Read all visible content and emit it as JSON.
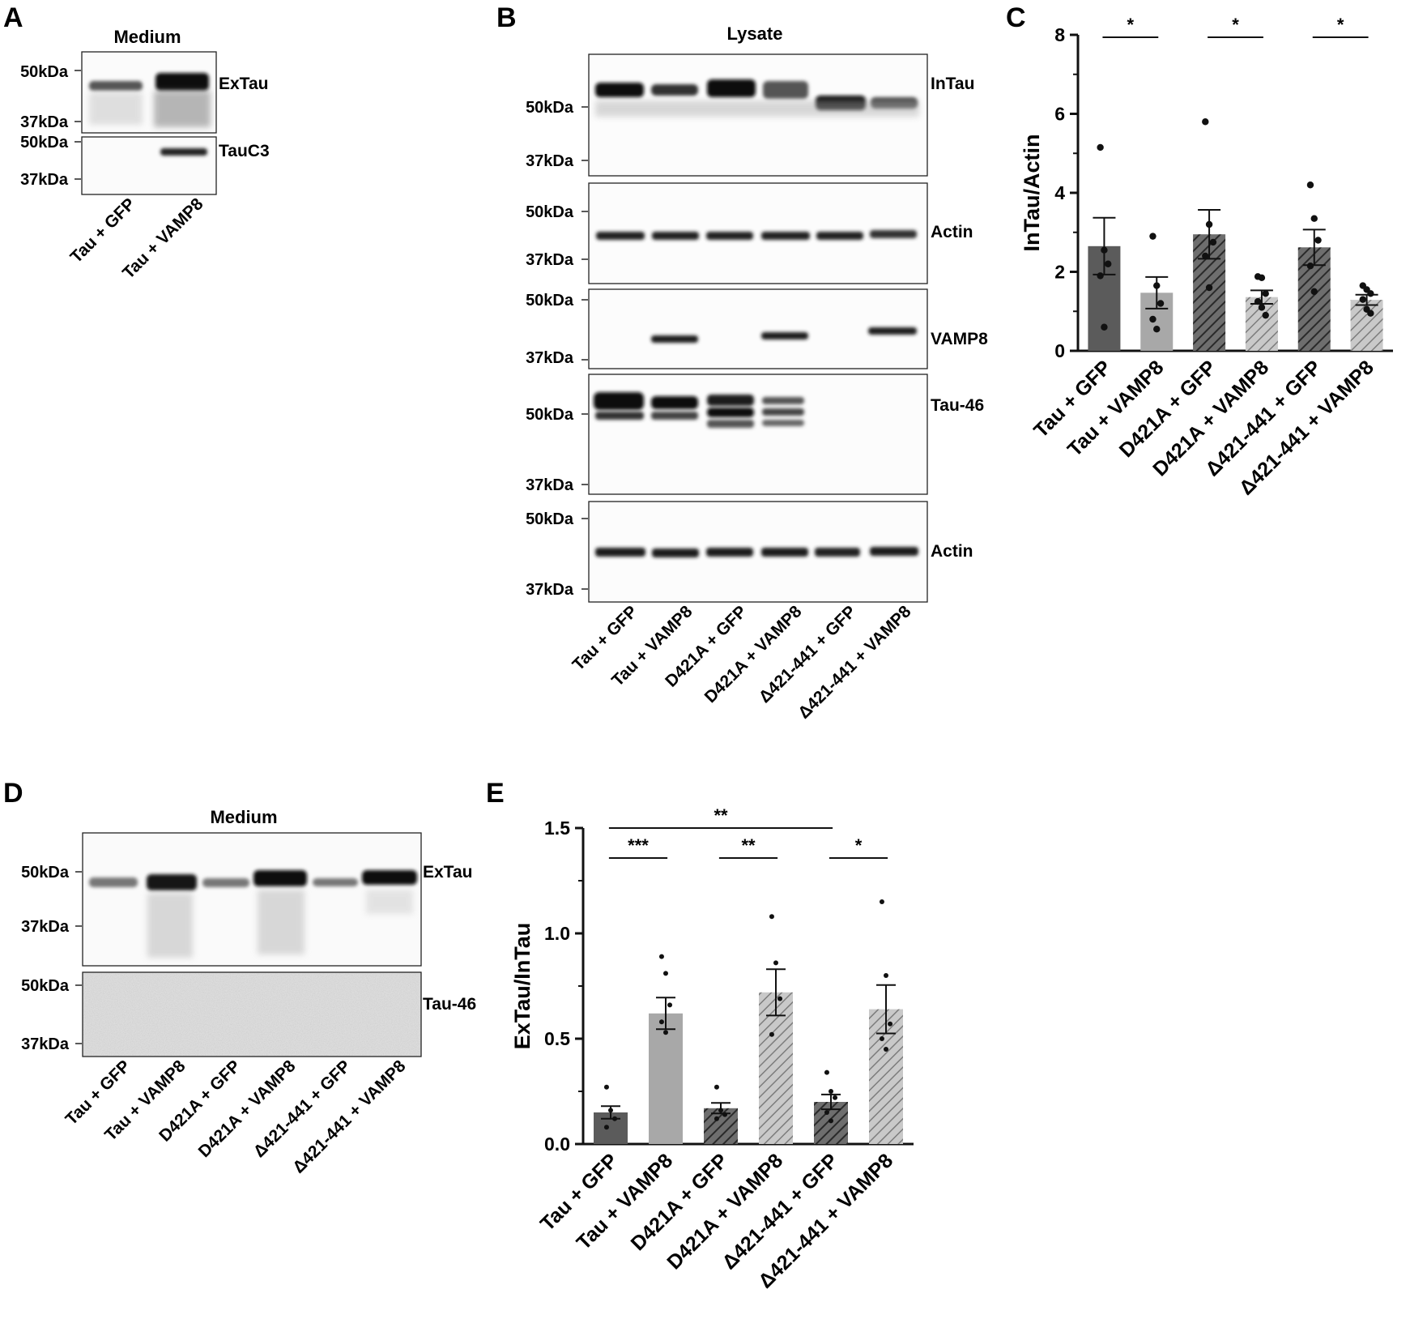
{
  "panels": {
    "A": {
      "label": "A",
      "title": "Medium",
      "blots": [
        {
          "name": "ExTau",
          "markers": [
            "50kDa",
            "37kDa"
          ]
        },
        {
          "name": "TauC3",
          "markers": [
            "50kDa",
            "37kDa"
          ]
        }
      ],
      "lanes": [
        "Tau + GFP",
        "Tau + VAMP8"
      ]
    },
    "B": {
      "label": "B",
      "title": "Lysate",
      "blots": [
        {
          "name": "InTau",
          "markers": [
            "50kDa",
            "37kDa"
          ]
        },
        {
          "name": "Actin",
          "markers": [
            "50kDa",
            "37kDa"
          ]
        },
        {
          "name": "VAMP8",
          "markers": [
            "50kDa",
            "37kDa"
          ]
        },
        {
          "name": "Tau-46",
          "markers": [
            "50kDa",
            "37kDa"
          ]
        },
        {
          "name": "Actin",
          "markers": [
            "50kDa",
            "37kDa"
          ]
        }
      ],
      "lanes": [
        "Tau + GFP",
        "Tau + VAMP8",
        "D421A + GFP",
        "D421A + VAMP8",
        "Δ421-441 + GFP",
        "Δ421-441 + VAMP8"
      ]
    },
    "D": {
      "label": "D",
      "title": "Medium",
      "blots": [
        {
          "name": "ExTau",
          "markers": [
            "50kDa",
            "37kDa"
          ]
        },
        {
          "name": "Tau-46",
          "markers": [
            "50kDa",
            "37kDa"
          ]
        }
      ],
      "lanes": [
        "Tau + GFP",
        "Tau + VAMP8",
        "D421A + GFP",
        "D421A + VAMP8",
        "Δ421-441 + GFP",
        "Δ421-441 + VAMP8"
      ]
    }
  },
  "chart_data": [
    {
      "panel": "C",
      "type": "bar",
      "ylabel": "InTau/Actin",
      "ylim": [
        0,
        8
      ],
      "yticks": [
        "0",
        "2",
        "4",
        "6",
        "8"
      ],
      "categories": [
        "Tau + GFP",
        "Tau + VAMP8",
        "D421A + GFP",
        "D421A + VAMP8",
        "Δ421-441 + GFP",
        "Δ421-441 + VAMP8"
      ],
      "values": [
        2.65,
        1.47,
        2.95,
        1.36,
        2.62,
        1.29
      ],
      "errors": [
        0.72,
        0.4,
        0.62,
        0.17,
        0.45,
        0.13
      ],
      "points": [
        [
          5.15,
          2.55,
          2.2,
          1.9,
          0.6
        ],
        [
          2.9,
          1.65,
          1.2,
          0.8,
          0.55
        ],
        [
          5.8,
          3.2,
          2.75,
          2.4,
          1.6
        ],
        [
          1.88,
          1.85,
          1.45,
          1.25,
          1.1,
          0.9
        ],
        [
          4.2,
          3.35,
          2.8,
          2.15,
          1.5
        ],
        [
          1.65,
          1.55,
          1.45,
          1.3,
          1.05,
          0.95
        ]
      ],
      "fills": [
        "#5b5b5b",
        "#a8a8a8",
        "hatch-dark",
        "hatch-light",
        "hatch-dark",
        "hatch-light"
      ],
      "significance": [
        {
          "from": 0,
          "to": 1,
          "label": "*"
        },
        {
          "from": 2,
          "to": 3,
          "label": "*"
        },
        {
          "from": 4,
          "to": 5,
          "label": "*"
        }
      ],
      "grid": false
    },
    {
      "panel": "E",
      "type": "bar",
      "ylabel": "ExTau/InTau",
      "ylim": [
        0,
        1.5
      ],
      "yticks": [
        "0.0",
        "0.5",
        "1.0",
        "1.5"
      ],
      "categories": [
        "Tau + GFP",
        "Tau + VAMP8",
        "D421A + GFP",
        "D421A + VAMP8",
        "Δ421-441 + GFP",
        "Δ421-441 + VAMP8"
      ],
      "values": [
        0.15,
        0.62,
        0.17,
        0.72,
        0.2,
        0.64
      ],
      "errors": [
        0.03,
        0.075,
        0.025,
        0.11,
        0.035,
        0.115
      ],
      "points": [
        [
          0.27,
          0.16,
          0.12,
          0.08
        ],
        [
          0.89,
          0.81,
          0.66,
          0.58,
          0.53
        ],
        [
          0.27,
          0.16,
          0.14,
          0.12
        ],
        [
          1.08,
          0.86,
          0.69,
          0.52
        ],
        [
          0.34,
          0.25,
          0.22,
          0.15,
          0.11
        ],
        [
          1.15,
          0.8,
          0.57,
          0.5,
          0.45
        ]
      ],
      "fills": [
        "#5b5b5b",
        "#a8a8a8",
        "hatch-dark",
        "hatch-light",
        "hatch-dark",
        "hatch-light"
      ],
      "significance": [
        {
          "from": 0,
          "to": 4,
          "label": "**"
        },
        {
          "from": 0,
          "to": 1,
          "label": "***"
        },
        {
          "from": 2,
          "to": 3,
          "label": "**"
        },
        {
          "from": 4,
          "to": 5,
          "label": "*"
        }
      ],
      "grid": false
    }
  ]
}
